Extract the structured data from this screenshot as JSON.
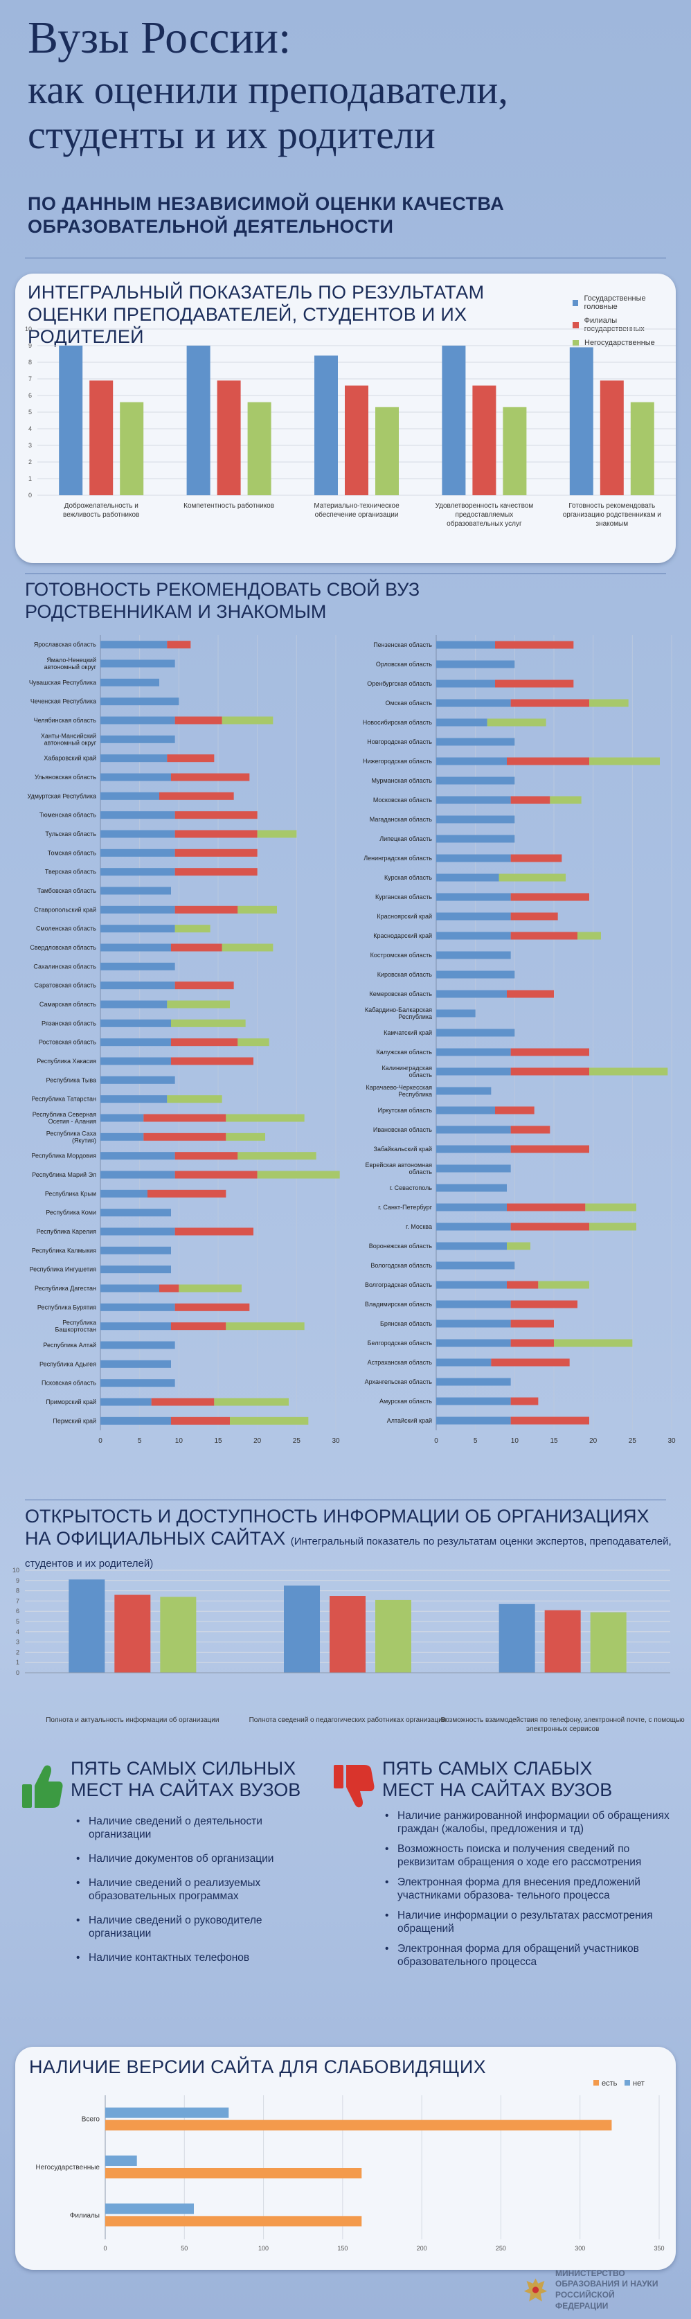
{
  "header": {
    "title_line1": "Вузы России:",
    "title_line2": "как оценили преподаватели, студенты и их родители",
    "subtitle": "ПО ДАННЫМ НЕЗАВИСИМОЙ ОЦЕНКИ КАЧЕСТВА ОБРАЗОВАТЕЛЬНОЙ ДЕЯТЕЛЬНОСТИ"
  },
  "colors": {
    "blue": "#5f92cb",
    "red": "#d9544c",
    "green": "#a7c86a",
    "orange": "#f39a4c",
    "lightblue": "#71a5d6"
  },
  "integral": {
    "title": "ИНТЕГРАЛЬНЫЙ ПОКАЗАТЕЛЬ ПО РЕЗУЛЬТАТАМ ОЦЕНКИ ПРЕПОДАВАТЕЛЕЙ, СТУДЕНТОВ И ИХ РОДИТЕЛЕЙ",
    "legend": [
      "Государственные головные",
      "Филиалы государственных",
      "Негосударственные"
    ]
  },
  "recommend": {
    "title": "ГОТОВНОСТЬ РЕКОМЕНДОВАТЬ СВОЙ ВУЗ РОДСТВЕННИКАМ И ЗНАКОМЫМ"
  },
  "websites": {
    "title": "ОТКРЫТОСТЬ И ДОСТУПНОСТЬ ИНФОРМАЦИИ ОБ ОРГАНИЗАЦИЯХ НА ОФИЦИАЛЬНЫХ САЙТАХ",
    "note": "(Интегральный показатель по результатам оценки экспертов, преподавателей, студентов и их родителей)"
  },
  "strong": {
    "heading": "ПЯТЬ САМЫХ СИЛЬНЫХ МЕСТ НА САЙТАХ ВУЗОВ",
    "items": [
      "Наличие сведений о деятельности организации",
      "Наличие документов об организации",
      "Наличие сведений о реализуемых образовательных программах",
      "Наличие сведений о руководителе организации",
      "Наличие контактных телефонов"
    ]
  },
  "weak": {
    "heading": "ПЯТЬ САМЫХ СЛАБЫХ МЕСТ НА САЙТАХ ВУЗОВ",
    "items": [
      "Наличие ранжированной информации об обращениях граждан (жалобы, предложения и тд)",
      "Возможность поиска и получения сведений по реквизитам обращения о ходе его рассмотрения",
      "Электронная форма для внесения предложений участниками образова- тельного процесса",
      "Наличие информации о результатах рассмотрения обращений",
      "Электронная форма для обращений участников образовательного процесса"
    ]
  },
  "impaired": {
    "title": "НАЛИЧИЕ ВЕРСИИ САЙТА ДЛЯ СЛАБОВИДЯЩИХ"
  },
  "footer": {
    "ministry_line1": "МИНИСТЕРСТВО",
    "ministry_line2": "ОБРАЗОВАНИЯ И НАУКИ",
    "ministry_line3": "РОССИЙСКОЙ ФЕДЕРАЦИИ"
  },
  "chart_data": [
    {
      "id": "integral",
      "type": "bar",
      "categories": [
        "Доброжелательность и вежливость работников",
        "Компетентность работников",
        "Материально-техническое обеспечение организации",
        "Удовлетворенность качеством предоставляемых образовательных услуг",
        "Готовность рекомендовать организацию родственникам и знакомым"
      ],
      "series": [
        {
          "name": "Государственные головные",
          "values": [
            9.0,
            9.0,
            8.4,
            9.0,
            8.9
          ]
        },
        {
          "name": "Филиалы государственных",
          "values": [
            6.9,
            6.9,
            6.6,
            6.6,
            6.9
          ]
        },
        {
          "name": "Негосударственные",
          "values": [
            5.6,
            5.6,
            5.3,
            5.3,
            5.6
          ]
        }
      ],
      "ylim": [
        0,
        10
      ],
      "yticks": [
        0,
        1,
        2,
        3,
        4,
        5,
        6,
        7,
        8,
        9,
        10
      ]
    },
    {
      "id": "recommend_left",
      "type": "stacked_hbar",
      "xlim": [
        0,
        30
      ],
      "xticks": [
        0,
        5,
        10,
        15,
        20,
        25,
        30
      ],
      "categories": [
        "Ярославская область",
        "Ямало-Ненецкий автономный округ",
        "Чувашская Республика",
        "Чеченская Республика",
        "Челябинская область",
        "Ханты-Мансийский автономный округ",
        "Хабаровский край",
        "Ульяновская область",
        "Удмуртская Республика",
        "Тюменская область",
        "Тульская область",
        "Томская область",
        "Тверская область",
        "Тамбовская область",
        "Ставропольский край",
        "Смоленская область",
        "Свердловская область",
        "Сахалинская область",
        "Саратовская область",
        "Самарская область",
        "Рязанская область",
        "Ростовская область",
        "Республика Хакасия",
        "Республика Тыва",
        "Республика Татарстан",
        "Республика Северная Осетия - Алания",
        "Республика Саха (Якутия)",
        "Республика Мордовия",
        "Республика Марий Эл",
        "Республика Крым",
        "Республика Коми",
        "Республика Карелия",
        "Республика Калмыкия",
        "Республика Ингушетия",
        "Республика Дагестан",
        "Республика Бурятия",
        "Республика Башкортостан",
        "Республика Алтай",
        "Республика Адыгея",
        "Псковская область",
        "Приморский край",
        "Пермский край"
      ],
      "series": [
        {
          "name": "Государственные головные",
          "values": [
            8.5,
            9.5,
            7.5,
            10,
            9.5,
            9.5,
            8.5,
            9.0,
            7.5,
            9.5,
            9.5,
            9.5,
            9.5,
            9.0,
            9.5,
            9.5,
            9.0,
            9.5,
            9.5,
            8.5,
            9.0,
            9.0,
            9.0,
            9.5,
            8.5,
            5.5,
            5.5,
            9.5,
            9.5,
            6.0,
            9.0,
            9.5,
            9.0,
            9.0,
            7.5,
            9.5,
            9.0,
            9.5,
            9.0,
            9.5,
            6.5,
            9.0
          ]
        },
        {
          "name": "Филиалы государственных",
          "values": [
            3.0,
            0,
            0,
            0,
            6.0,
            0,
            6.0,
            10.0,
            9.5,
            10.5,
            10.5,
            10.5,
            10.5,
            0,
            8.0,
            0,
            6.5,
            0,
            7.5,
            0,
            0,
            8.5,
            10.5,
            0,
            0,
            10.5,
            10.5,
            8.0,
            10.5,
            10.0,
            0,
            10.0,
            0,
            0,
            2.5,
            9.5,
            7.0,
            0,
            0,
            0,
            8.0,
            7.5
          ]
        },
        {
          "name": "Негосударственные",
          "values": [
            0,
            0,
            0,
            0,
            6.5,
            0,
            0,
            0,
            0,
            0,
            5.0,
            0,
            0,
            0,
            5.0,
            4.5,
            6.5,
            0,
            0,
            8.0,
            9.5,
            4.0,
            0,
            0,
            7.0,
            10.0,
            5.0,
            10.0,
            10.5,
            0,
            0,
            0,
            0,
            0,
            8.0,
            0,
            10.0,
            0,
            0,
            0,
            9.5,
            10.0
          ]
        }
      ]
    },
    {
      "id": "recommend_right",
      "type": "stacked_hbar",
      "xlim": [
        0,
        30
      ],
      "xticks": [
        0,
        5,
        10,
        15,
        20,
        25,
        30
      ],
      "categories": [
        "Пензенская область",
        "Орловская область",
        "Оренбургская область",
        "Омская область",
        "Новосибирская область",
        "Новгородская область",
        "Нижегородская область",
        "Мурманская область",
        "Московская область",
        "Магаданская область",
        "Липецкая область",
        "Ленинградская область",
        "Курская область",
        "Курганская область",
        "Красноярский край",
        "Краснодарский край",
        "Костромская область",
        "Кировская область",
        "Кемеровская область",
        "Кабардино-Балкарская Республика",
        "Камчатский край",
        "Калужская область",
        "Калининградская область",
        "Карачаево-Черкесская Республика",
        "Иркутская область",
        "Ивановская область",
        "Забайкальский край",
        "Еврейская автономная область",
        "г. Севастополь",
        "г. Санкт-Петербург",
        "г. Москва",
        "Воронежская область",
        "Вологодская область",
        "Волгоградская область",
        "Владимирская область",
        "Брянская область",
        "Белгородская область",
        "Астраханская область",
        "Архангельская область",
        "Амурская область",
        "Алтайский край"
      ],
      "series": [
        {
          "name": "Государственные головные",
          "values": [
            7.5,
            10,
            7.5,
            9.5,
            6.5,
            10,
            9.0,
            10,
            9.5,
            10,
            10,
            9.5,
            8.0,
            9.5,
            9.5,
            9.5,
            9.5,
            10,
            9.0,
            5.0,
            10,
            9.5,
            9.5,
            7.0,
            7.5,
            9.5,
            9.5,
            9.5,
            9.0,
            9.0,
            9.5,
            9.0,
            10,
            9.0,
            9.5,
            9.5,
            9.5,
            7.0,
            9.5,
            9.5,
            9.5
          ]
        },
        {
          "name": "Филиалы государственных",
          "values": [
            10.0,
            0,
            10.0,
            10.0,
            0,
            0,
            10.5,
            0,
            5.0,
            0,
            0,
            6.5,
            0,
            10.0,
            6.0,
            8.5,
            0,
            0,
            6.0,
            0,
            0,
            10.0,
            10.0,
            0,
            5.0,
            5.0,
            10.0,
            0,
            0,
            10.0,
            10.0,
            0,
            0,
            4.0,
            8.5,
            5.5,
            5.5,
            10.0,
            0,
            3.5,
            10.0
          ]
        },
        {
          "name": "Негосударственные",
          "values": [
            0,
            0,
            0,
            5.0,
            7.5,
            0,
            9.0,
            0,
            4.0,
            0,
            0,
            0,
            8.5,
            0,
            0,
            3.0,
            0,
            0,
            0,
            0,
            0,
            0,
            10.0,
            0,
            0,
            0,
            0,
            0,
            0,
            6.5,
            6.0,
            3.0,
            0,
            6.5,
            0,
            0,
            10.0,
            0,
            0,
            0,
            0
          ]
        }
      ]
    },
    {
      "id": "websites",
      "type": "bar",
      "categories": [
        "Полнота и актуальность информации об организации",
        "Полнота сведений о педагогических работниках организации",
        "Возможность взаимодействия по телефону, электронной почте, с помощью электронных сервисов"
      ],
      "series": [
        {
          "name": "Государственные головные",
          "values": [
            9.1,
            8.5,
            6.7
          ]
        },
        {
          "name": "Филиалы государственных",
          "values": [
            7.6,
            7.5,
            6.1
          ]
        },
        {
          "name": "Негосударственные",
          "values": [
            7.4,
            7.1,
            5.9
          ]
        }
      ],
      "ylim": [
        0,
        10
      ],
      "yticks": [
        0,
        1,
        2,
        3,
        4,
        5,
        6,
        7,
        8,
        9,
        10
      ]
    },
    {
      "id": "impaired",
      "type": "hbar",
      "categories": [
        "Всего",
        "Негосударственные",
        "Филиалы"
      ],
      "series": [
        {
          "name": "есть",
          "values": [
            320,
            162,
            162
          ]
        },
        {
          "name": "нет",
          "values": [
            78,
            20,
            56
          ]
        }
      ],
      "xlim": [
        0,
        350
      ],
      "xticks": [
        0,
        50,
        100,
        150,
        200,
        250,
        300,
        350
      ]
    }
  ]
}
